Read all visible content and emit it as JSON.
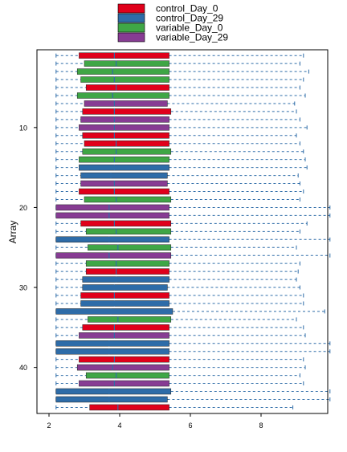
{
  "chart_data": {
    "type": "boxplot",
    "orientation": "horizontal",
    "ylabel": "Array",
    "xlabel": "",
    "title": "",
    "xlim": [
      1.95,
      9.95
    ],
    "x_ticks": [
      2,
      4,
      6,
      8
    ],
    "y_ticks": [
      10,
      20,
      30,
      40
    ],
    "whisker_color": "#2E6CA8",
    "legend": {
      "position": "top",
      "entries": [
        {
          "label": "control_Day_0",
          "color": "#E0001B"
        },
        {
          "label": "control_Day_29",
          "color": "#2E6CA8"
        },
        {
          "label": "variable_Day_0",
          "color": "#3FA646"
        },
        {
          "label": "variable_Day_29",
          "color": "#873C93"
        }
      ]
    },
    "boxes": [
      {
        "array": 1,
        "group": "control_Day_0",
        "min": 2.2,
        "q1": 2.85,
        "median": 3.85,
        "q3": 5.4,
        "max": 9.2
      },
      {
        "array": 2,
        "group": "variable_Day_0",
        "min": 2.2,
        "q1": 3.0,
        "median": 3.9,
        "q3": 5.4,
        "max": 9.1
      },
      {
        "array": 3,
        "group": "variable_Day_0",
        "min": 2.2,
        "q1": 2.8,
        "median": 3.8,
        "q3": 5.4,
        "max": 9.35
      },
      {
        "array": 4,
        "group": "variable_Day_0",
        "min": 2.2,
        "q1": 2.9,
        "median": 3.85,
        "q3": 5.4,
        "max": 9.2
      },
      {
        "array": 5,
        "group": "control_Day_0",
        "min": 2.2,
        "q1": 3.05,
        "median": 3.9,
        "q3": 5.4,
        "max": 9.1
      },
      {
        "array": 6,
        "group": "variable_Day_0",
        "min": 2.2,
        "q1": 2.8,
        "median": 3.8,
        "q3": 5.4,
        "max": 9.25
      },
      {
        "array": 7,
        "group": "variable_Day_29",
        "min": 2.2,
        "q1": 3.0,
        "median": 3.85,
        "q3": 5.35,
        "max": 8.95
      },
      {
        "array": 8,
        "group": "control_Day_0",
        "min": 2.2,
        "q1": 2.95,
        "median": 3.85,
        "q3": 5.45,
        "max": 9.0
      },
      {
        "array": 9,
        "group": "variable_Day_29",
        "min": 2.2,
        "q1": 2.9,
        "median": 3.85,
        "q3": 5.4,
        "max": 9.1
      },
      {
        "array": 10,
        "group": "variable_Day_29",
        "min": 2.2,
        "q1": 2.85,
        "median": 3.85,
        "q3": 5.4,
        "max": 9.3
      },
      {
        "array": 11,
        "group": "control_Day_0",
        "min": 2.2,
        "q1": 2.95,
        "median": 3.85,
        "q3": 5.4,
        "max": 9.0
      },
      {
        "array": 12,
        "group": "control_Day_0",
        "min": 2.2,
        "q1": 3.0,
        "median": 3.9,
        "q3": 5.4,
        "max": 9.1
      },
      {
        "array": 13,
        "group": "variable_Day_0",
        "min": 2.2,
        "q1": 2.95,
        "median": 3.9,
        "q3": 5.45,
        "max": 9.2
      },
      {
        "array": 14,
        "group": "variable_Day_0",
        "min": 2.2,
        "q1": 2.85,
        "median": 3.85,
        "q3": 5.4,
        "max": 9.25
      },
      {
        "array": 15,
        "group": "control_Day_29",
        "min": 2.2,
        "q1": 2.85,
        "median": 3.85,
        "q3": 5.4,
        "max": 9.3
      },
      {
        "array": 16,
        "group": "control_Day_29",
        "min": 2.2,
        "q1": 2.9,
        "median": 3.75,
        "q3": 5.35,
        "max": 9.05
      },
      {
        "array": 17,
        "group": "variable_Day_29",
        "min": 2.2,
        "q1": 2.9,
        "median": 3.85,
        "q3": 5.35,
        "max": 9.1
      },
      {
        "array": 18,
        "group": "control_Day_0",
        "min": 2.2,
        "q1": 2.85,
        "median": 3.85,
        "q3": 5.4,
        "max": 9.2
      },
      {
        "array": 19,
        "group": "variable_Day_0",
        "min": 2.2,
        "q1": 3.0,
        "median": 3.9,
        "q3": 5.45,
        "max": 9.1
      },
      {
        "array": 20,
        "group": "variable_Day_29",
        "min": 2.2,
        "q1": 2.2,
        "median": 3.7,
        "q3": 5.4,
        "max": 9.95
      },
      {
        "array": 21,
        "group": "variable_Day_29",
        "min": 2.2,
        "q1": 2.2,
        "median": 3.7,
        "q3": 5.4,
        "max": 9.95
      },
      {
        "array": 22,
        "group": "control_Day_0",
        "min": 2.2,
        "q1": 2.9,
        "median": 3.85,
        "q3": 5.45,
        "max": 9.3
      },
      {
        "array": 23,
        "group": "variable_Day_0",
        "min": 2.2,
        "q1": 3.05,
        "median": 3.9,
        "q3": 5.45,
        "max": 9.1
      },
      {
        "array": 24,
        "group": "control_Day_29",
        "min": 2.2,
        "q1": 2.2,
        "median": 3.7,
        "q3": 5.4,
        "max": 9.95
      },
      {
        "array": 25,
        "group": "variable_Day_0",
        "min": 2.2,
        "q1": 3.1,
        "median": 3.95,
        "q3": 5.45,
        "max": 9.0
      },
      {
        "array": 26,
        "group": "variable_Day_29",
        "min": 2.2,
        "q1": 2.2,
        "median": 3.7,
        "q3": 5.45,
        "max": 9.95
      },
      {
        "array": 27,
        "group": "variable_Day_0",
        "min": 2.2,
        "q1": 3.05,
        "median": 3.9,
        "q3": 5.4,
        "max": 9.1
      },
      {
        "array": 28,
        "group": "control_Day_0",
        "min": 2.2,
        "q1": 3.05,
        "median": 3.9,
        "q3": 5.4,
        "max": 9.05
      },
      {
        "array": 29,
        "group": "control_Day_29",
        "min": 2.2,
        "q1": 2.95,
        "median": 3.9,
        "q3": 5.4,
        "max": 9.0
      },
      {
        "array": 30,
        "group": "control_Day_29",
        "min": 2.2,
        "q1": 2.95,
        "median": 3.85,
        "q3": 5.35,
        "max": 9.1
      },
      {
        "array": 31,
        "group": "control_Day_0",
        "min": 2.2,
        "q1": 2.9,
        "median": 3.85,
        "q3": 5.4,
        "max": 9.2
      },
      {
        "array": 32,
        "group": "control_Day_29",
        "min": 2.2,
        "q1": 2.9,
        "median": 3.85,
        "q3": 5.4,
        "max": 9.2
      },
      {
        "array": 33,
        "group": "control_Day_29",
        "min": 2.2,
        "q1": 2.2,
        "median": 3.75,
        "q3": 5.5,
        "max": 9.8
      },
      {
        "array": 34,
        "group": "variable_Day_0",
        "min": 2.2,
        "q1": 3.1,
        "median": 3.95,
        "q3": 5.45,
        "max": 9.0
      },
      {
        "array": 35,
        "group": "control_Day_0",
        "min": 2.2,
        "q1": 2.95,
        "median": 3.85,
        "q3": 5.4,
        "max": 9.2
      },
      {
        "array": 36,
        "group": "variable_Day_29",
        "min": 2.2,
        "q1": 2.85,
        "median": 3.85,
        "q3": 5.4,
        "max": 9.25
      },
      {
        "array": 37,
        "group": "control_Day_29",
        "min": 2.2,
        "q1": 2.2,
        "median": 3.7,
        "q3": 5.4,
        "max": 9.95
      },
      {
        "array": 38,
        "group": "control_Day_29",
        "min": 2.2,
        "q1": 2.2,
        "median": 3.7,
        "q3": 5.4,
        "max": 9.95
      },
      {
        "array": 39,
        "group": "control_Day_0",
        "min": 2.2,
        "q1": 2.85,
        "median": 3.85,
        "q3": 5.4,
        "max": 9.2
      },
      {
        "array": 40,
        "group": "variable_Day_29",
        "min": 2.2,
        "q1": 2.8,
        "median": 3.8,
        "q3": 5.4,
        "max": 9.25
      },
      {
        "array": 41,
        "group": "variable_Day_0",
        "min": 2.2,
        "q1": 3.05,
        "median": 3.9,
        "q3": 5.4,
        "max": 9.1
      },
      {
        "array": 42,
        "group": "variable_Day_29",
        "min": 2.2,
        "q1": 2.85,
        "median": 3.85,
        "q3": 5.4,
        "max": 9.2
      },
      {
        "array": 43,
        "group": "control_Day_29",
        "min": 2.2,
        "q1": 2.2,
        "median": 3.7,
        "q3": 5.45,
        "max": 9.95
      },
      {
        "array": 44,
        "group": "control_Day_29",
        "min": 2.2,
        "q1": 2.2,
        "median": 3.7,
        "q3": 5.35,
        "max": 9.95
      },
      {
        "array": 45,
        "group": "control_Day_0",
        "min": 2.2,
        "q1": 3.15,
        "median": 3.95,
        "q3": 5.4,
        "max": 8.9
      }
    ]
  }
}
